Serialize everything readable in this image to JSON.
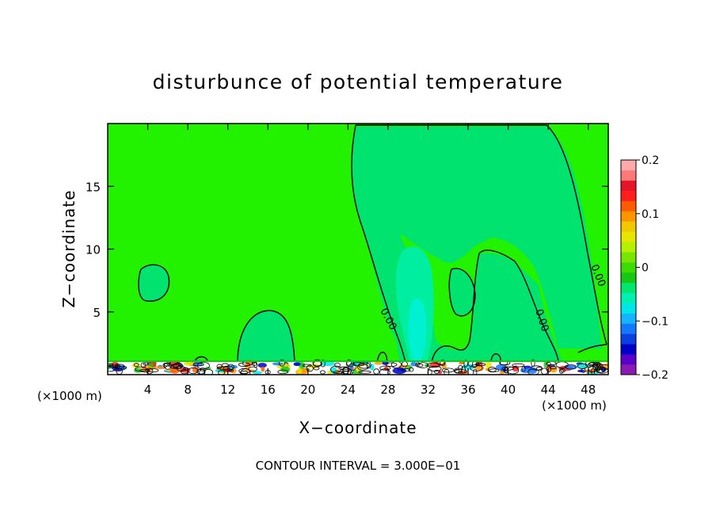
{
  "chart_data": {
    "type": "heatmap",
    "title": "disturbunce of potential temperature",
    "xlabel": "X−coordinate",
    "ylabel": "Z−coordinate",
    "x_unit_left": "(×1000 m)",
    "x_unit_right": "(×1000 m)",
    "xlim": [
      0,
      50
    ],
    "ylim": [
      0,
      20
    ],
    "x_ticks": [
      4,
      8,
      12,
      16,
      20,
      24,
      28,
      32,
      36,
      40,
      44,
      48
    ],
    "y_ticks": [
      5,
      10,
      15
    ],
    "colorbar": {
      "range": [
        -0.2,
        0.2
      ],
      "tick_values": [
        0.2,
        0.1,
        0,
        -0.1,
        -0.2
      ],
      "tick_labels": [
        "0.2",
        "0.1",
        "0",
        "−0.1",
        "−0.2"
      ],
      "colors": [
        "#8a1ab4",
        "#5a00c8",
        "#0000c8",
        "#0a40e0",
        "#1478ff",
        "#14b4ff",
        "#00e6e6",
        "#00f0b4",
        "#00e66e",
        "#14c814",
        "#3cdc00",
        "#78e600",
        "#b4f000",
        "#e6e600",
        "#f0c800",
        "#ff9600",
        "#ff5a00",
        "#ff1e1e",
        "#e61428",
        "#ff7878",
        "#ffaaaa"
      ]
    },
    "contour_labels": [
      "0.00",
      "0.00",
      "0.00"
    ],
    "background_value": 0,
    "annotation": "CONTOUR INTERVAL = 3.000E−01"
  },
  "colors": {
    "field": "#22f200",
    "negative_light": "#00e36e",
    "negative_mid": "#00eea0",
    "negative_strong": "#00f0d2",
    "contour": "#000000"
  }
}
